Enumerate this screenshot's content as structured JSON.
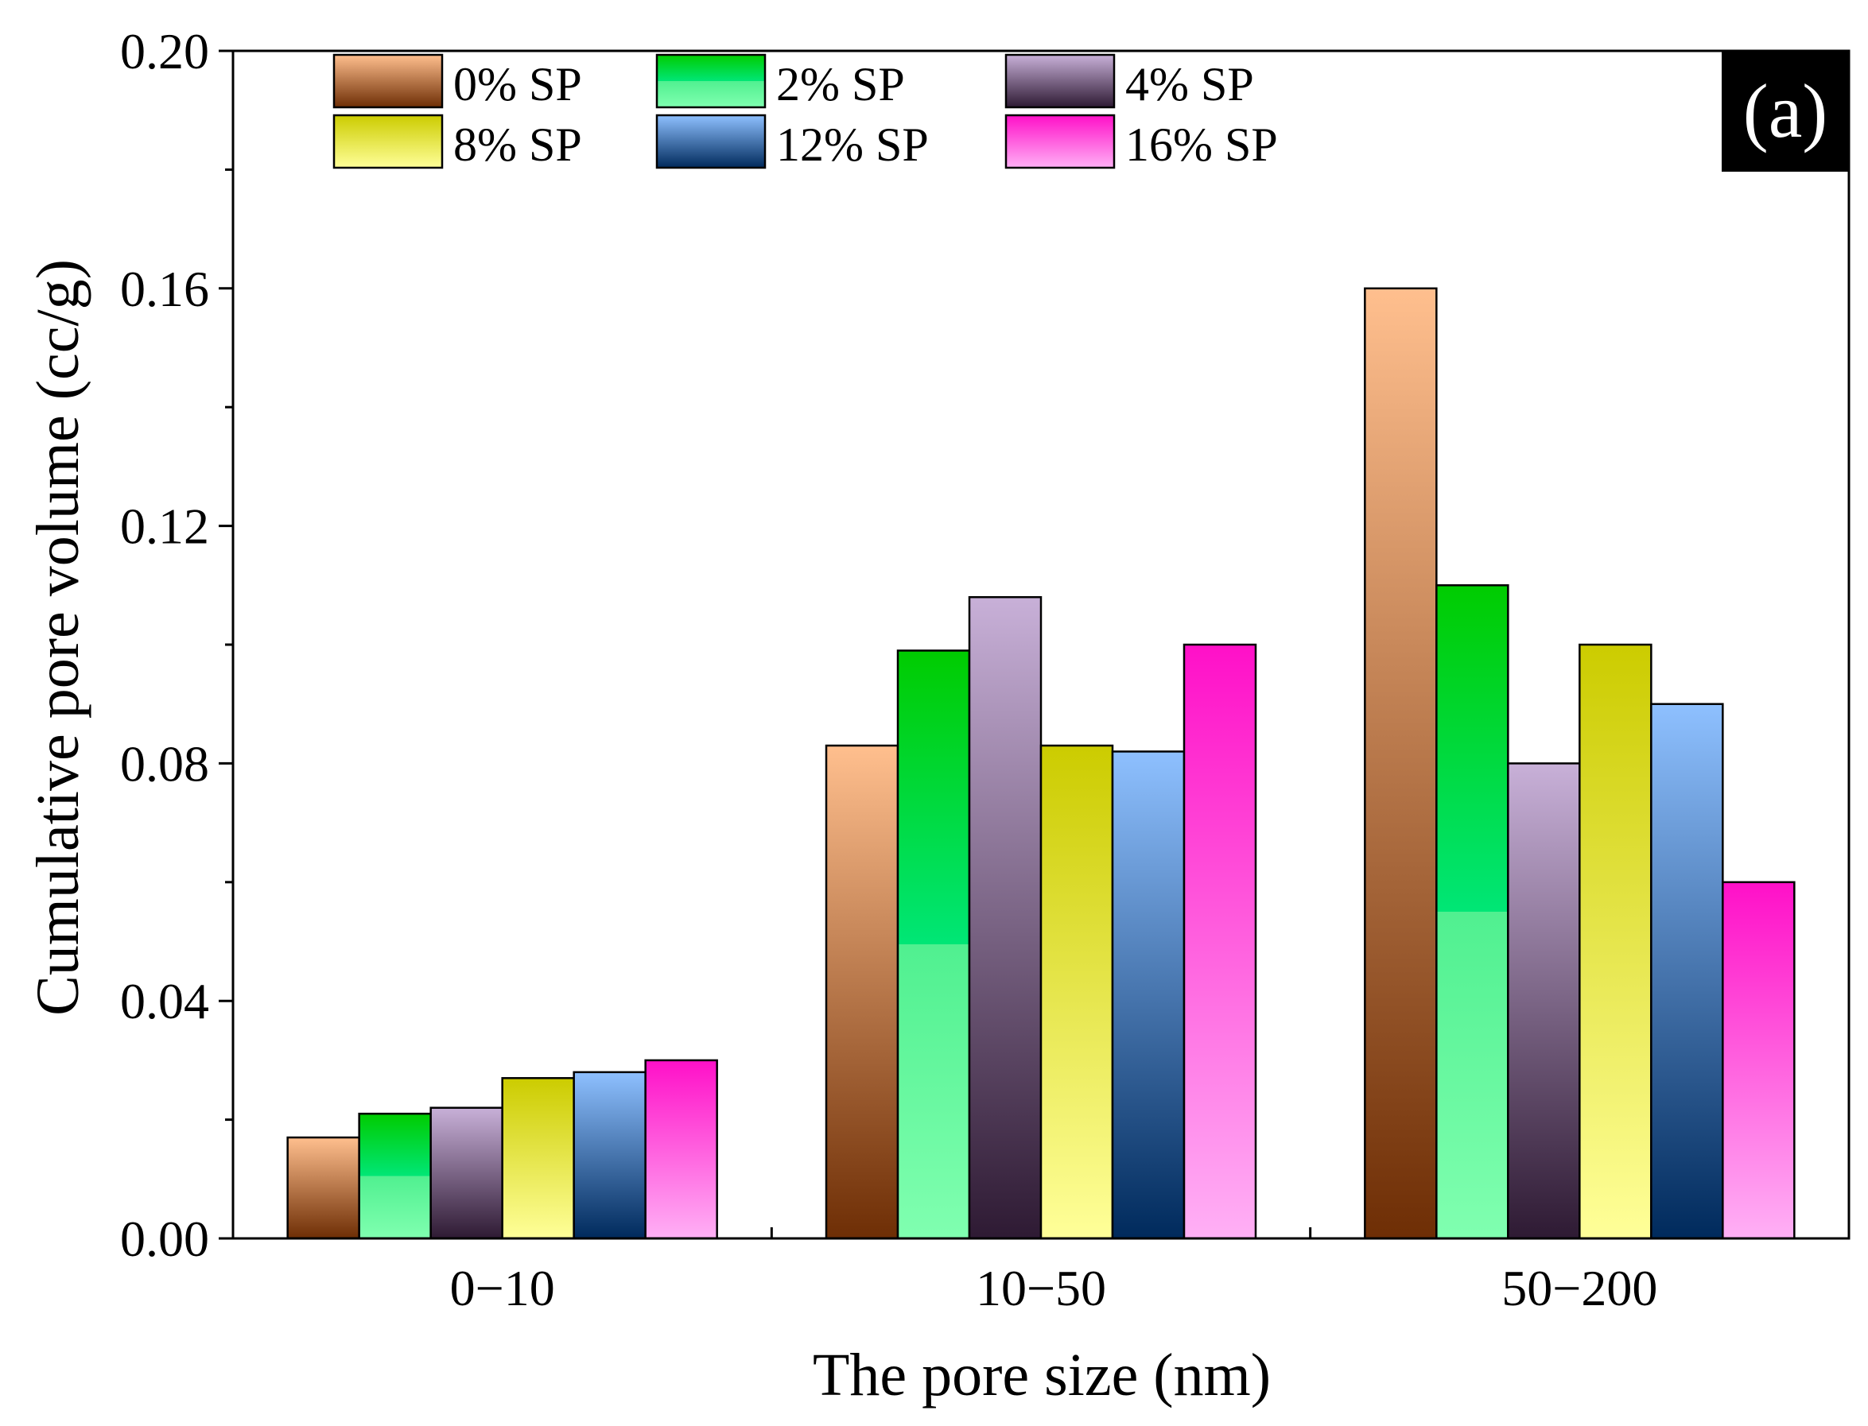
{
  "chart_data": {
    "type": "bar",
    "panel_label": "(a)",
    "title": "",
    "xlabel": "The pore size (nm)",
    "ylabel": "Cumulative pore volume (cc/g)",
    "categories": [
      "0−10",
      "10−50",
      "50−200"
    ],
    "ylim": [
      0,
      0.2
    ],
    "yticks": [
      "0.00",
      "0.04",
      "0.08",
      "0.12",
      "0.16",
      "0.20"
    ],
    "legend_position": "top-left",
    "series": [
      {
        "name": "0% SP",
        "values": [
          0.017,
          0.083,
          0.16
        ],
        "color_top": "#FFBF8E",
        "color_bottom": "#6E2E05"
      },
      {
        "name": "2% SP",
        "values": [
          0.021,
          0.099,
          0.11
        ],
        "color_top": "#00CC00",
        "color_mid": "#00E676",
        "color_bottom": "#80FFB0"
      },
      {
        "name": "4% SP",
        "values": [
          0.022,
          0.108,
          0.08
        ],
        "color_top": "#C8B0D8",
        "color_bottom": "#2E1A33"
      },
      {
        "name": "8% SP",
        "values": [
          0.027,
          0.083,
          0.1
        ],
        "color_top": "#CCCC00",
        "color_bottom": "#FFFF99"
      },
      {
        "name": "12% SP",
        "values": [
          0.028,
          0.082,
          0.09
        ],
        "color_top": "#8EC0FF",
        "color_bottom": "#002A5C"
      },
      {
        "name": "16% SP",
        "values": [
          0.03,
          0.1,
          0.06
        ],
        "color_top": "#FF10C8",
        "color_bottom": "#FFB0F5"
      }
    ]
  }
}
